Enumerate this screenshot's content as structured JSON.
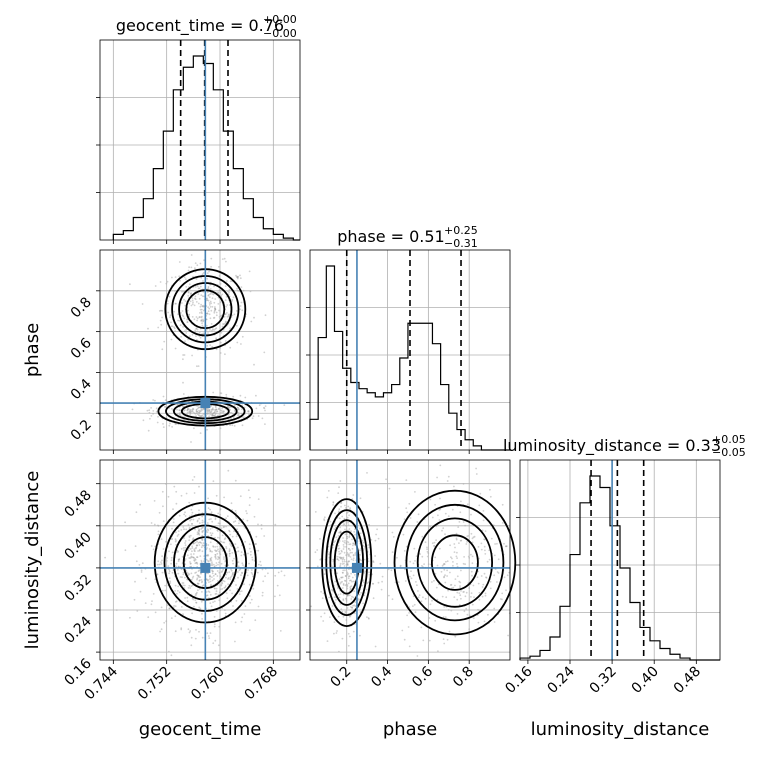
{
  "chart_data": {
    "type": "corner",
    "parameters": [
      {
        "key": "geocent_time",
        "label": "geocent_time",
        "title": "geocent_time = 0.76",
        "title_sup": "+0.00",
        "title_sub": "−0.00",
        "range": [
          0.742,
          0.772
        ],
        "ticks": [
          0.744,
          0.752,
          0.76,
          0.768
        ],
        "tick_labels": [
          "0.744",
          "0.752",
          "0.760",
          "0.768"
        ],
        "quantiles": [
          0.7541,
          0.7577,
          0.7612
        ],
        "truth": 0.7578,
        "hist": {
          "start": 0.744,
          "bin_width": 0.0015,
          "counts": [
            0.03,
            0.05,
            0.12,
            0.22,
            0.38,
            0.58,
            0.8,
            0.92,
            0.98,
            0.94,
            0.8,
            0.58,
            0.38,
            0.22,
            0.12,
            0.06,
            0.03,
            0.01,
            0.0
          ]
        }
      },
      {
        "key": "phase",
        "label": "phase",
        "title": "phase = 0.51",
        "title_sup": "+0.25",
        "title_sub": "−0.31",
        "range": [
          0.02,
          1.0
        ],
        "ticks": [
          0.2,
          0.4,
          0.6,
          0.8
        ],
        "tick_labels": [
          "0.2",
          "0.4",
          "0.6",
          "0.8"
        ],
        "quantiles": [
          0.2,
          0.51,
          0.76
        ],
        "truth": 0.25,
        "hist": {
          "start": 0.02,
          "bin_width": 0.04,
          "counts": [
            0.15,
            0.55,
            0.9,
            0.58,
            0.4,
            0.33,
            0.3,
            0.28,
            0.26,
            0.28,
            0.32,
            0.45,
            0.62,
            0.62,
            0.62,
            0.52,
            0.32,
            0.18,
            0.1,
            0.05,
            0.02,
            0.0,
            0.0,
            0.0,
            0.0
          ]
        }
      },
      {
        "key": "luminosity_distance",
        "label": "luminosity_distance",
        "title": "luminosity_distance = 0.33",
        "title_sup": "+0.05",
        "title_sub": "−0.05",
        "range": [
          0.145,
          0.525
        ],
        "ticks": [
          0.16,
          0.24,
          0.32,
          0.4,
          0.48
        ],
        "tick_labels": [
          "0.16",
          "0.24",
          "0.32",
          "0.40",
          "0.48"
        ],
        "quantiles": [
          0.28,
          0.33,
          0.38
        ],
        "truth": 0.32,
        "hist": {
          "start": 0.145,
          "bin_width": 0.019,
          "counts": [
            0.01,
            0.02,
            0.05,
            0.12,
            0.28,
            0.55,
            0.82,
            0.96,
            0.9,
            0.7,
            0.48,
            0.3,
            0.17,
            0.1,
            0.06,
            0.03,
            0.01,
            0.0,
            0.0,
            0.0
          ]
        }
      }
    ],
    "pairs": [
      {
        "x": "geocent_time",
        "y": "phase",
        "modes": [
          {
            "x": 0.7578,
            "y": 0.71,
            "sx": 0.0026,
            "sy": 0.085,
            "w": 1.0
          },
          {
            "x": 0.7578,
            "y": 0.21,
            "sx": 0.003,
            "sy": 0.03,
            "w": 1.1
          }
        ],
        "contour_levels": [
          0.55,
          0.32,
          0.16,
          0.07
        ]
      },
      {
        "x": "geocent_time",
        "y": "luminosity_distance",
        "modes": [
          {
            "x": 0.7578,
            "y": 0.33,
            "sx": 0.0032,
            "sy": 0.048,
            "w": 1.0
          }
        ],
        "contour_levels": [
          0.6,
          0.34,
          0.16,
          0.06
        ]
      },
      {
        "x": "phase",
        "y": "luminosity_distance",
        "modes": [
          {
            "x": 0.2,
            "y": 0.33,
            "sx": 0.05,
            "sy": 0.05,
            "w": 1.1
          },
          {
            "x": 0.73,
            "y": 0.33,
            "sx": 0.13,
            "sy": 0.06,
            "w": 0.8
          }
        ],
        "contour_levels": [
          0.55,
          0.3,
          0.15,
          0.06
        ]
      }
    ],
    "colors": {
      "truth": "#4682b4",
      "hist": "#000000",
      "grid": "#b0b0b0",
      "density": "#000000"
    },
    "grid": true
  }
}
